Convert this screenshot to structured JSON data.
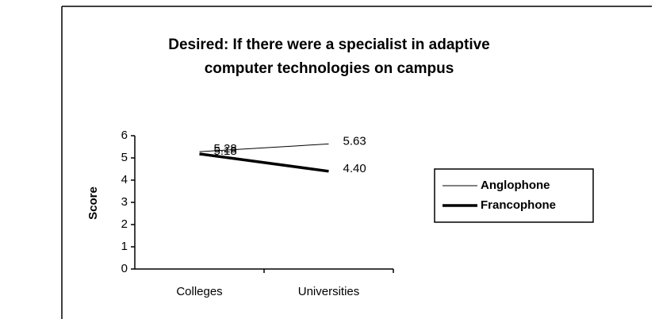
{
  "chart_data": {
    "type": "line",
    "title": [
      "Desired: If there were a specialist in adaptive",
      "computer technologies on campus"
    ],
    "y_label": "Score",
    "categories": [
      "Colleges",
      "Universities"
    ],
    "series": [
      {
        "name": "Anglophone",
        "color": "#000000",
        "line_width": 1,
        "values": [
          5.28,
          5.63
        ],
        "value_labels": [
          "5.28",
          "5.63"
        ]
      },
      {
        "name": "Francophone",
        "color": "#000000",
        "line_width": 3.5,
        "values": [
          5.18,
          4.4
        ],
        "value_labels": [
          "5.18",
          "4.40"
        ]
      }
    ],
    "ylim": [
      0,
      6
    ],
    "yticks": [
      0,
      1,
      2,
      3,
      4,
      5,
      6
    ],
    "legend": "right"
  }
}
